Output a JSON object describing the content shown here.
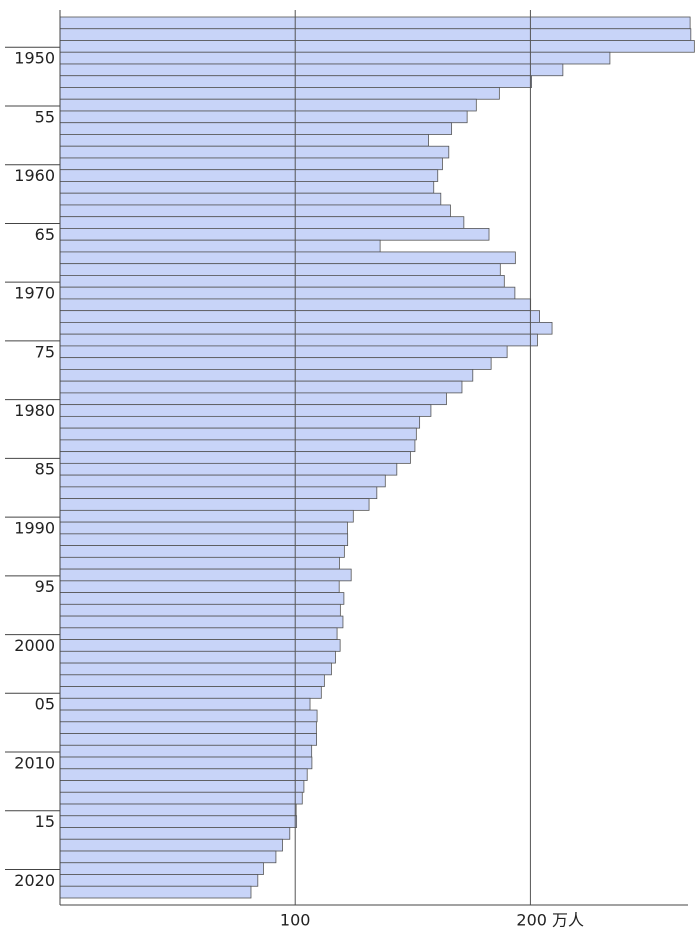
{
  "chart_data": {
    "type": "barh",
    "categories": [
      null,
      null,
      null,
      "1950",
      null,
      null,
      null,
      null,
      "55",
      null,
      null,
      null,
      null,
      "1960",
      null,
      null,
      null,
      null,
      "65",
      null,
      null,
      null,
      null,
      "1970",
      null,
      null,
      null,
      null,
      "75",
      null,
      null,
      null,
      null,
      "1980",
      null,
      null,
      null,
      null,
      "85",
      null,
      null,
      null,
      null,
      "1990",
      null,
      null,
      null,
      null,
      "95",
      null,
      null,
      null,
      null,
      "2000",
      null,
      null,
      null,
      null,
      "05",
      null,
      null,
      null,
      null,
      "2010",
      null,
      null,
      null,
      null,
      "15",
      null,
      null,
      null,
      null,
      "2020",
      null
    ],
    "values": [
      267.9,
      268.2,
      269.7,
      233.8,
      213.8,
      200.5,
      186.8,
      177.0,
      173.1,
      166.5,
      156.7,
      165.3,
      162.6,
      160.6,
      158.9,
      161.9,
      166.0,
      171.7,
      182.4,
      136.1,
      193.6,
      187.2,
      188.9,
      193.4,
      200.1,
      203.9,
      209.2,
      203.0,
      190.1,
      183.3,
      175.5,
      170.9,
      164.3,
      157.7,
      152.9,
      151.5,
      150.9,
      149.0,
      143.2,
      138.3,
      134.7,
      131.4,
      124.7,
      122.2,
      122.3,
      120.9,
      118.8,
      123.8,
      118.7,
      120.7,
      119.2,
      120.3,
      117.8,
      119.1,
      117.1,
      115.4,
      112.4,
      111.1,
      106.3,
      109.3,
      109.0,
      109.1,
      107.0,
      107.1,
      105.1,
      103.7,
      103.0,
      100.4,
      100.6,
      97.7,
      94.6,
      91.8,
      86.5,
      84.1,
      81.2
    ],
    "color": "#c8d4f8",
    "xlim": [
      0,
      267
    ],
    "xticks": [
      100,
      {
        "value": 200,
        "label": "200 万人"
      }
    ],
    "grid": true
  }
}
